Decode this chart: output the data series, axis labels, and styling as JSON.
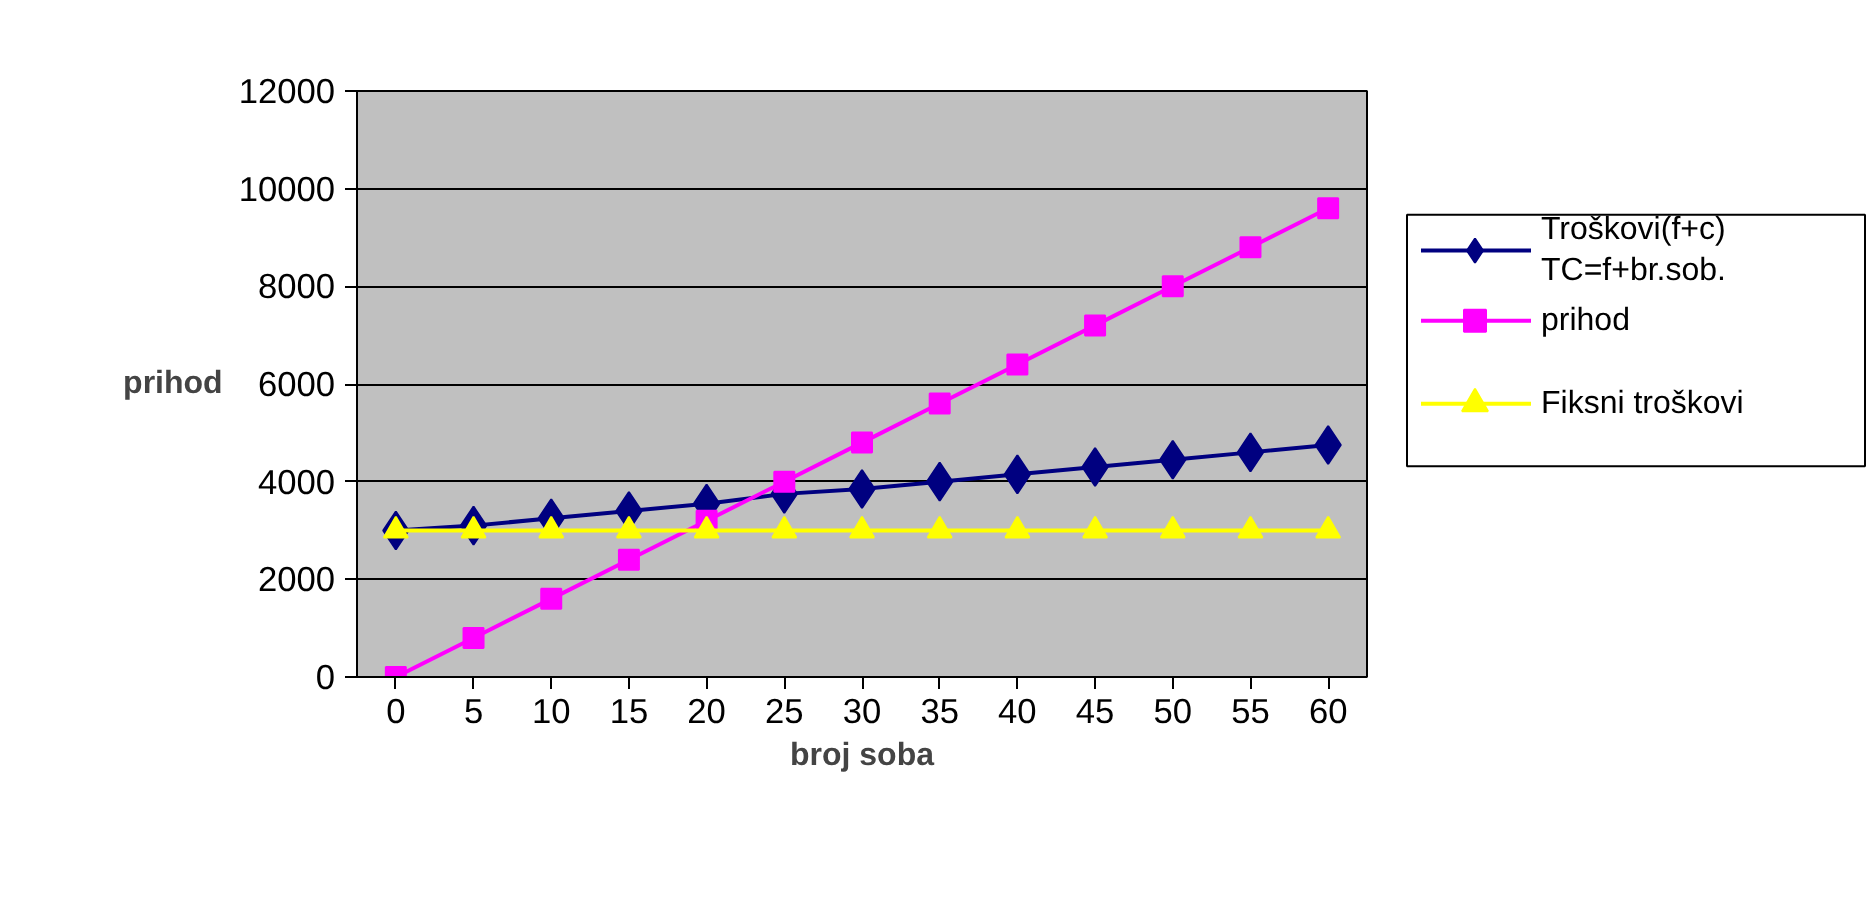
{
  "chart_data": {
    "type": "line",
    "xlabel": "broj soba",
    "ylabel": "prihod",
    "categories": [
      "0",
      "5",
      "10",
      "15",
      "20",
      "25",
      "30",
      "35",
      "40",
      "45",
      "50",
      "55",
      "60"
    ],
    "series": [
      {
        "name": "Troškovi(f+c)\nTC=f+br.sob.",
        "color": "#000080",
        "marker": "diamond",
        "values": [
          3000,
          3100,
          3250,
          3400,
          3550,
          3750,
          3850,
          4000,
          4150,
          4300,
          4450,
          4600,
          4750
        ]
      },
      {
        "name": "prihod",
        "color": "#ff00ff",
        "marker": "square",
        "values": [
          0,
          800,
          1600,
          2400,
          3200,
          4000,
          4800,
          5600,
          6400,
          7200,
          8000,
          8800,
          9600
        ]
      },
      {
        "name": "Fiksni  troškovi",
        "color": "#ffff00",
        "marker": "triangle",
        "values": [
          3000,
          3000,
          3000,
          3000,
          3000,
          3000,
          3000,
          3000,
          3000,
          3000,
          3000,
          3000,
          3000
        ]
      }
    ],
    "ylim": [
      0,
      12000
    ],
    "yticks": [
      0,
      2000,
      4000,
      6000,
      8000,
      10000,
      12000
    ],
    "grid": "y",
    "legend": "right"
  }
}
